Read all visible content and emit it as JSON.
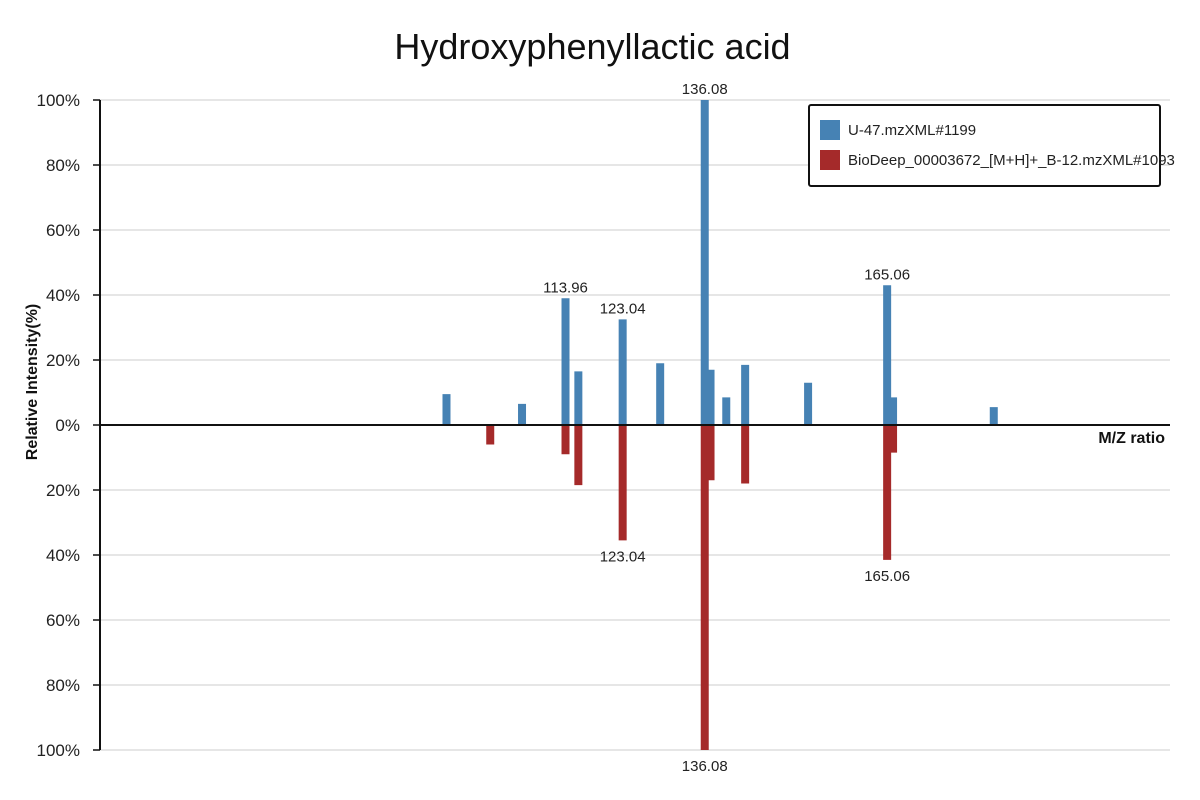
{
  "chart_data": {
    "type": "bar",
    "title": "Hydroxyphenyllactic acid",
    "xlabel": "M/Z ratio",
    "ylabel": "Relative Intensity(%)",
    "y_ticks_top": [
      "100%",
      "80%",
      "60%",
      "40%",
      "20%",
      "0%"
    ],
    "y_ticks_bottom": [
      "20%",
      "40%",
      "60%",
      "80%",
      "100%"
    ],
    "ylim": [
      -100,
      100
    ],
    "xlim": [
      40,
      210
    ],
    "grid": true,
    "legend_position": "top-right",
    "colors": {
      "top": "#4682b4",
      "bottom": "#a52a2a"
    },
    "series": [
      {
        "name": "U-47.mzXML#1199",
        "direction": "up",
        "peaks": [
          {
            "mz": 95.05,
            "intensity": 9.5
          },
          {
            "mz": 107.05,
            "intensity": 6.5
          },
          {
            "mz": 113.96,
            "intensity": 39,
            "label": "113.96"
          },
          {
            "mz": 116.0,
            "intensity": 16.5
          },
          {
            "mz": 123.04,
            "intensity": 32.5,
            "label": "123.04"
          },
          {
            "mz": 129.0,
            "intensity": 19
          },
          {
            "mz": 136.08,
            "intensity": 100,
            "label": "136.08"
          },
          {
            "mz": 137.0,
            "intensity": 17
          },
          {
            "mz": 139.5,
            "intensity": 8.5
          },
          {
            "mz": 142.5,
            "intensity": 18.5
          },
          {
            "mz": 152.5,
            "intensity": 13
          },
          {
            "mz": 165.06,
            "intensity": 43,
            "label": "165.06"
          },
          {
            "mz": 166.0,
            "intensity": 8.5
          },
          {
            "mz": 182.0,
            "intensity": 5.5
          }
        ]
      },
      {
        "name": "BioDeep_00003672_[M+H]+_B-12.mzXML#1093",
        "direction": "down",
        "peaks": [
          {
            "mz": 102.0,
            "intensity": 6
          },
          {
            "mz": 113.96,
            "intensity": 9
          },
          {
            "mz": 116.0,
            "intensity": 18.5
          },
          {
            "mz": 123.04,
            "intensity": 35.5,
            "label": "123.04"
          },
          {
            "mz": 136.08,
            "intensity": 100,
            "label": "136.08"
          },
          {
            "mz": 137.0,
            "intensity": 17
          },
          {
            "mz": 142.5,
            "intensity": 18
          },
          {
            "mz": 165.06,
            "intensity": 41.5,
            "label": "165.06"
          },
          {
            "mz": 166.0,
            "intensity": 8.5
          }
        ]
      }
    ]
  }
}
